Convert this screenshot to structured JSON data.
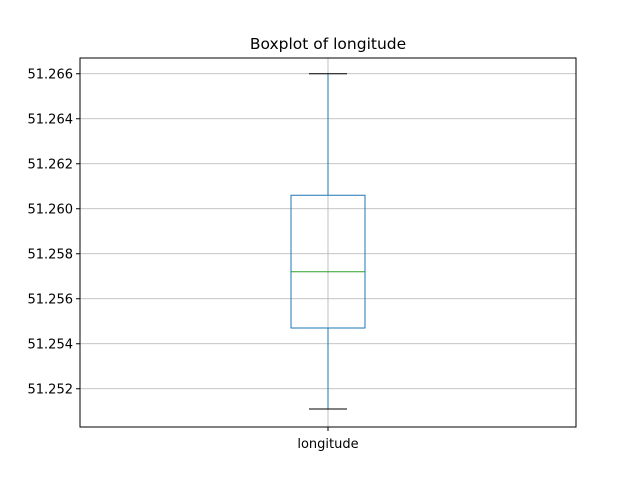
{
  "chart_data": {
    "type": "box",
    "title": "Boxplot of longitude",
    "categories": [
      "longitude"
    ],
    "boxes": [
      {
        "category": "longitude",
        "whisker_low": 51.2511,
        "q1": 51.2547,
        "median": 51.2572,
        "q3": 51.2606,
        "whisker_high": 51.266
      }
    ],
    "ylim": [
      51.2503,
      51.2667
    ],
    "yticks": [
      51.252,
      51.254,
      51.256,
      51.258,
      51.26,
      51.262,
      51.264,
      51.266
    ],
    "ytick_labels": [
      "51.252",
      "51.254",
      "51.256",
      "51.258",
      "51.260",
      "51.262",
      "51.264",
      "51.266"
    ],
    "grid": true,
    "colors": {
      "box": "#1f77b4",
      "whisker": "#1f77b4",
      "cap": "#000000",
      "median": "#2ca02c",
      "grid": "#b0b0b0",
      "axes": "#000000"
    }
  }
}
